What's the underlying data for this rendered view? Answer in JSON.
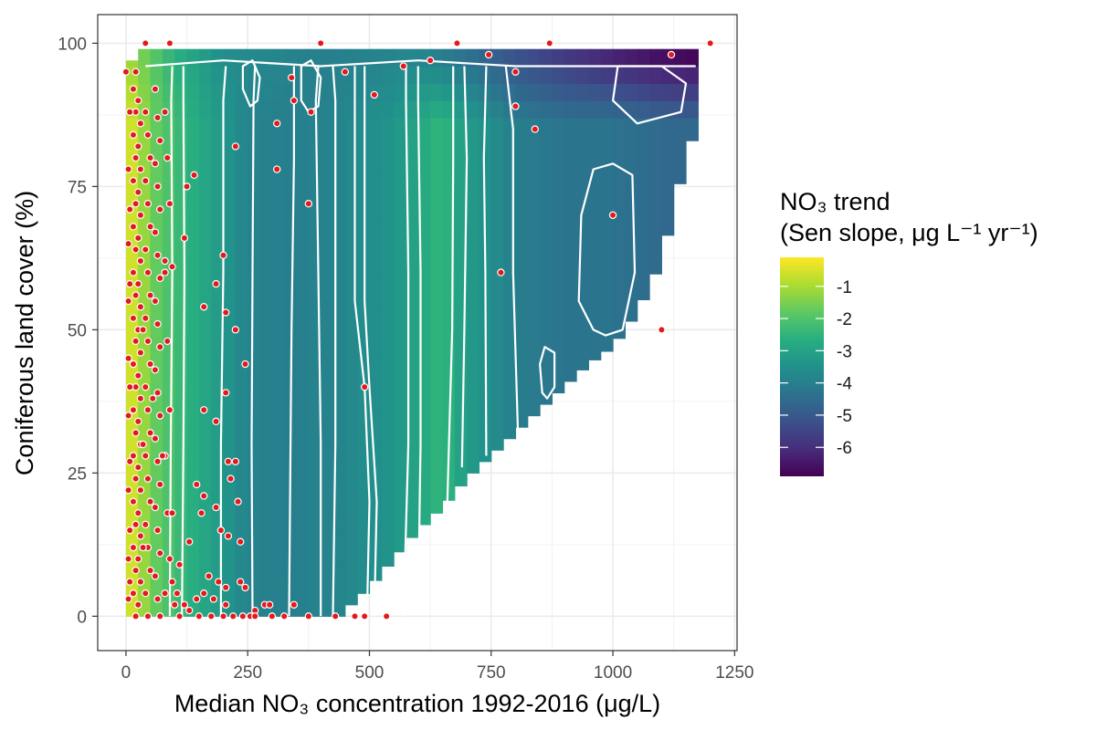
{
  "chart_data": {
    "type": "heatmap",
    "title": "",
    "xlabel": "Median NO₃ concentration 1992-2016 (μg/L)",
    "ylabel": "Coniferous land cover (%)",
    "xlim": [
      -58,
      1255
    ],
    "ylim": [
      -6,
      105
    ],
    "x_ticks": [
      0,
      250,
      500,
      750,
      1000,
      1250
    ],
    "y_ticks": [
      0,
      25,
      50,
      75,
      100
    ],
    "grid": true,
    "legend": {
      "title_line1": "NO₃ trend",
      "title_line2": "(Sen slope, μg L⁻¹ yr⁻¹)",
      "placement": "right",
      "ticks": [
        "-1",
        "-2",
        "-3",
        "-4",
        "-5",
        "-6"
      ],
      "tick_values": [
        -1,
        -2,
        -3,
        -4,
        -5,
        -6
      ],
      "range": [
        -6.9,
        -0.1
      ]
    },
    "surface": {
      "x_step": 25,
      "y_step": 3,
      "x_start": 0,
      "boundary": [
        [
          0,
          97
        ],
        [
          25,
          99
        ],
        [
          250,
          99
        ],
        [
          500,
          99
        ],
        [
          750,
          99
        ],
        [
          1000,
          99
        ],
        [
          1175,
          99
        ],
        [
          1175,
          86
        ],
        [
          1150,
          80
        ],
        [
          1125,
          71
        ],
        [
          1100,
          62
        ],
        [
          1050,
          53
        ],
        [
          1000,
          47
        ],
        [
          950,
          44
        ],
        [
          900,
          40
        ],
        [
          850,
          36
        ],
        [
          800,
          32
        ],
        [
          750,
          28
        ],
        [
          700,
          24
        ],
        [
          650,
          19
        ],
        [
          600,
          15
        ],
        [
          550,
          10
        ],
        [
          500,
          5
        ],
        [
          450,
          1
        ]
      ],
      "x_profile": [
        [
          0,
          -0.4
        ],
        [
          25,
          -0.8
        ],
        [
          50,
          -1.6
        ],
        [
          100,
          -2.2
        ],
        [
          150,
          -2.8
        ],
        [
          200,
          -3.3
        ],
        [
          250,
          -3.9
        ],
        [
          350,
          -4.0
        ],
        [
          450,
          -3.8
        ],
        [
          550,
          -3.4
        ],
        [
          650,
          -2.4
        ],
        [
          700,
          -3.2
        ],
        [
          800,
          -4.0
        ],
        [
          900,
          -4.3
        ],
        [
          1000,
          -4.3
        ],
        [
          1100,
          -4.6
        ],
        [
          1175,
          -4.6
        ]
      ],
      "top_profile": [
        [
          0,
          -1.0
        ],
        [
          100,
          -2.6
        ],
        [
          200,
          -3.6
        ],
        [
          400,
          -4.0
        ],
        [
          600,
          -3.8
        ],
        [
          700,
          -4.4
        ],
        [
          800,
          -5.2
        ],
        [
          900,
          -5.8
        ],
        [
          1000,
          -6.3
        ],
        [
          1100,
          -6.7
        ],
        [
          1175,
          -6.9
        ]
      ]
    },
    "contours": [
      [
        [
          90,
          0
        ],
        [
          92,
          30
        ],
        [
          95,
          60
        ],
        [
          93,
          90
        ],
        [
          95,
          96
        ]
      ],
      [
        [
          115,
          0
        ],
        [
          118,
          30
        ],
        [
          120,
          60
        ],
        [
          118,
          90
        ],
        [
          118,
          96
        ]
      ],
      [
        [
          195,
          0
        ],
        [
          195,
          30
        ],
        [
          200,
          60
        ],
        [
          200,
          90
        ],
        [
          205,
          96
        ]
      ],
      [
        [
          260,
          0
        ],
        [
          258,
          30
        ],
        [
          260,
          60
        ],
        [
          262,
          90
        ],
        [
          265,
          96
        ]
      ],
      [
        [
          335,
          0
        ],
        [
          338,
          30
        ],
        [
          340,
          50
        ],
        [
          345,
          80
        ],
        [
          345,
          96
        ]
      ],
      [
        [
          400,
          0
        ],
        [
          400,
          30
        ],
        [
          395,
          60
        ],
        [
          390,
          90
        ],
        [
          395,
          96
        ]
      ],
      [
        [
          425,
          0
        ],
        [
          430,
          30
        ],
        [
          430,
          60
        ],
        [
          430,
          90
        ],
        [
          425,
          96
        ]
      ],
      [
        [
          495,
          0
        ],
        [
          500,
          20
        ],
        [
          490,
          40
        ],
        [
          470,
          55
        ],
        [
          470,
          96
        ]
      ],
      [
        [
          510,
          0
        ],
        [
          515,
          20
        ],
        [
          500,
          40
        ],
        [
          490,
          55
        ],
        [
          490,
          96
        ]
      ],
      [
        [
          570,
          0
        ],
        [
          580,
          30
        ],
        [
          580,
          60
        ],
        [
          575,
          90
        ],
        [
          575,
          96
        ]
      ],
      [
        [
          600,
          2
        ],
        [
          605,
          30
        ],
        [
          605,
          60
        ],
        [
          600,
          90
        ],
        [
          600,
          96
        ]
      ],
      [
        [
          660,
          20
        ],
        [
          670,
          50
        ],
        [
          672,
          80
        ],
        [
          672,
          96
        ]
      ],
      [
        [
          690,
          26
        ],
        [
          695,
          50
        ],
        [
          700,
          80
        ],
        [
          695,
          96
        ]
      ],
      [
        [
          740,
          28
        ],
        [
          738,
          60
        ],
        [
          735,
          80
        ],
        [
          740,
          96
        ]
      ],
      [
        [
          805,
          32
        ],
        [
          795,
          60
        ],
        [
          795,
          85
        ],
        [
          780,
          96
        ]
      ]
    ],
    "contour_loops": [
      [
        [
          960,
          50
        ],
        [
          930,
          55
        ],
        [
          935,
          70
        ],
        [
          960,
          78
        ],
        [
          1000,
          79
        ],
        [
          1040,
          77
        ],
        [
          1045,
          60
        ],
        [
          1020,
          50
        ],
        [
          985,
          49
        ],
        [
          960,
          50
        ]
      ],
      [
        [
          855,
          39
        ],
        [
          850,
          44
        ],
        [
          860,
          47
        ],
        [
          880,
          46
        ],
        [
          880,
          40
        ],
        [
          865,
          38
        ],
        [
          855,
          39
        ]
      ],
      [
        [
          1000,
          90
        ],
        [
          1010,
          96
        ],
        [
          1100,
          96
        ],
        [
          1150,
          93
        ],
        [
          1140,
          88
        ],
        [
          1050,
          86
        ],
        [
          1000,
          90
        ]
      ],
      [
        [
          240,
          92
        ],
        [
          240,
          96
        ],
        [
          260,
          97
        ],
        [
          275,
          94
        ],
        [
          270,
          90
        ],
        [
          255,
          89
        ],
        [
          240,
          92
        ]
      ],
      [
        [
          360,
          90
        ],
        [
          360,
          96
        ],
        [
          380,
          97
        ],
        [
          400,
          94
        ],
        [
          395,
          89
        ],
        [
          375,
          88
        ],
        [
          360,
          90
        ]
      ]
    ],
    "points": [
      [
        0,
        95
      ],
      [
        40,
        100
      ],
      [
        90,
        100
      ],
      [
        400,
        100
      ],
      [
        680,
        100
      ],
      [
        870,
        100
      ],
      [
        1200,
        100
      ],
      [
        1120,
        98
      ],
      [
        745,
        98
      ],
      [
        625,
        97
      ],
      [
        570,
        96
      ],
      [
        450,
        95
      ],
      [
        800,
        95
      ],
      [
        340,
        94
      ],
      [
        510,
        91
      ],
      [
        380,
        88
      ],
      [
        345,
        90
      ],
      [
        800,
        89
      ],
      [
        310,
        86
      ],
      [
        840,
        85
      ],
      [
        225,
        82
      ],
      [
        310,
        78
      ],
      [
        140,
        77
      ],
      [
        125,
        75
      ],
      [
        375,
        72
      ],
      [
        1000,
        70
      ],
      [
        120,
        66
      ],
      [
        200,
        63
      ],
      [
        80,
        62
      ],
      [
        95,
        61
      ],
      [
        770,
        60
      ],
      [
        185,
        58
      ],
      [
        160,
        54
      ],
      [
        205,
        53
      ],
      [
        225,
        50
      ],
      [
        1100,
        50
      ],
      [
        245,
        44
      ],
      [
        490,
        40
      ],
      [
        205,
        39
      ],
      [
        160,
        36
      ],
      [
        185,
        34
      ],
      [
        210,
        27
      ],
      [
        225,
        27
      ],
      [
        215,
        24
      ],
      [
        145,
        23
      ],
      [
        160,
        21
      ],
      [
        230,
        20
      ],
      [
        155,
        18
      ],
      [
        185,
        19
      ],
      [
        195,
        15
      ],
      [
        210,
        14
      ],
      [
        235,
        13
      ],
      [
        130,
        13
      ],
      [
        110,
        9
      ],
      [
        95,
        6
      ],
      [
        170,
        7
      ],
      [
        190,
        6
      ],
      [
        205,
        5
      ],
      [
        235,
        6
      ],
      [
        245,
        5
      ],
      [
        205,
        2
      ],
      [
        265,
        1
      ],
      [
        285,
        2
      ],
      [
        295,
        2
      ],
      [
        345,
        2
      ],
      [
        300,
        0
      ],
      [
        325,
        0
      ],
      [
        375,
        0
      ],
      [
        430,
        0
      ],
      [
        470,
        0
      ],
      [
        490,
        0
      ],
      [
        535,
        0
      ],
      [
        20,
        95
      ],
      [
        15,
        92
      ],
      [
        25,
        90
      ],
      [
        20,
        88
      ],
      [
        30,
        86
      ],
      [
        15,
        84
      ],
      [
        25,
        82
      ],
      [
        20,
        80
      ],
      [
        30,
        78
      ],
      [
        15,
        76
      ],
      [
        25,
        74
      ],
      [
        20,
        72
      ],
      [
        30,
        70
      ],
      [
        15,
        68
      ],
      [
        25,
        66
      ],
      [
        20,
        64
      ],
      [
        30,
        62
      ],
      [
        15,
        60
      ],
      [
        25,
        58
      ],
      [
        20,
        56
      ],
      [
        30,
        54
      ],
      [
        15,
        52
      ],
      [
        25,
        50
      ],
      [
        20,
        48
      ],
      [
        30,
        46
      ],
      [
        15,
        44
      ],
      [
        25,
        42
      ],
      [
        20,
        40
      ],
      [
        30,
        38
      ],
      [
        15,
        36
      ],
      [
        25,
        34
      ],
      [
        20,
        32
      ],
      [
        30,
        30
      ],
      [
        15,
        28
      ],
      [
        25,
        26
      ],
      [
        20,
        24
      ],
      [
        30,
        22
      ],
      [
        15,
        20
      ],
      [
        25,
        18
      ],
      [
        20,
        16
      ],
      [
        30,
        14
      ],
      [
        15,
        12
      ],
      [
        25,
        10
      ],
      [
        20,
        8
      ],
      [
        30,
        6
      ],
      [
        15,
        4
      ],
      [
        25,
        2
      ],
      [
        20,
        0
      ],
      [
        40,
        88
      ],
      [
        45,
        84
      ],
      [
        50,
        80
      ],
      [
        40,
        76
      ],
      [
        45,
        72
      ],
      [
        50,
        68
      ],
      [
        40,
        64
      ],
      [
        45,
        60
      ],
      [
        50,
        56
      ],
      [
        40,
        52
      ],
      [
        45,
        48
      ],
      [
        50,
        44
      ],
      [
        40,
        40
      ],
      [
        45,
        36
      ],
      [
        50,
        32
      ],
      [
        40,
        28
      ],
      [
        45,
        24
      ],
      [
        50,
        20
      ],
      [
        40,
        16
      ],
      [
        45,
        12
      ],
      [
        50,
        8
      ],
      [
        40,
        4
      ],
      [
        45,
        0
      ],
      [
        60,
        92
      ],
      [
        65,
        87
      ],
      [
        70,
        83
      ],
      [
        60,
        79
      ],
      [
        65,
        75
      ],
      [
        70,
        71
      ],
      [
        60,
        67
      ],
      [
        65,
        63
      ],
      [
        70,
        59
      ],
      [
        60,
        55
      ],
      [
        65,
        51
      ],
      [
        70,
        47
      ],
      [
        60,
        43
      ],
      [
        65,
        39
      ],
      [
        70,
        35
      ],
      [
        60,
        31
      ],
      [
        65,
        27
      ],
      [
        70,
        23
      ],
      [
        60,
        19
      ],
      [
        65,
        15
      ],
      [
        70,
        11
      ],
      [
        60,
        7
      ],
      [
        65,
        3
      ],
      [
        70,
        0
      ],
      [
        80,
        88
      ],
      [
        85,
        80
      ],
      [
        90,
        72
      ],
      [
        80,
        60
      ],
      [
        85,
        48
      ],
      [
        90,
        36
      ],
      [
        80,
        28
      ],
      [
        85,
        18
      ],
      [
        90,
        10
      ],
      [
        80,
        4
      ],
      [
        100,
        2
      ],
      [
        110,
        0
      ],
      [
        130,
        1
      ],
      [
        150,
        0
      ],
      [
        175,
        0
      ],
      [
        5,
        78
      ],
      [
        5,
        65
      ],
      [
        5,
        55
      ],
      [
        5,
        45
      ],
      [
        5,
        35
      ],
      [
        5,
        22
      ],
      [
        5,
        10
      ],
      [
        5,
        3
      ],
      [
        8,
        88
      ],
      [
        8,
        71
      ],
      [
        8,
        58
      ],
      [
        8,
        40
      ],
      [
        8,
        27
      ],
      [
        8,
        15
      ],
      [
        8,
        6
      ],
      [
        35,
        50
      ],
      [
        35,
        30
      ],
      [
        35,
        12
      ],
      [
        55,
        38
      ],
      [
        75,
        28
      ],
      [
        95,
        18
      ],
      [
        105,
        4
      ],
      [
        120,
        2
      ],
      [
        145,
        3
      ],
      [
        160,
        4
      ],
      [
        180,
        3
      ],
      [
        200,
        0
      ],
      [
        220,
        0
      ],
      [
        240,
        0
      ],
      [
        255,
        0
      ],
      [
        265,
        0
      ]
    ]
  }
}
